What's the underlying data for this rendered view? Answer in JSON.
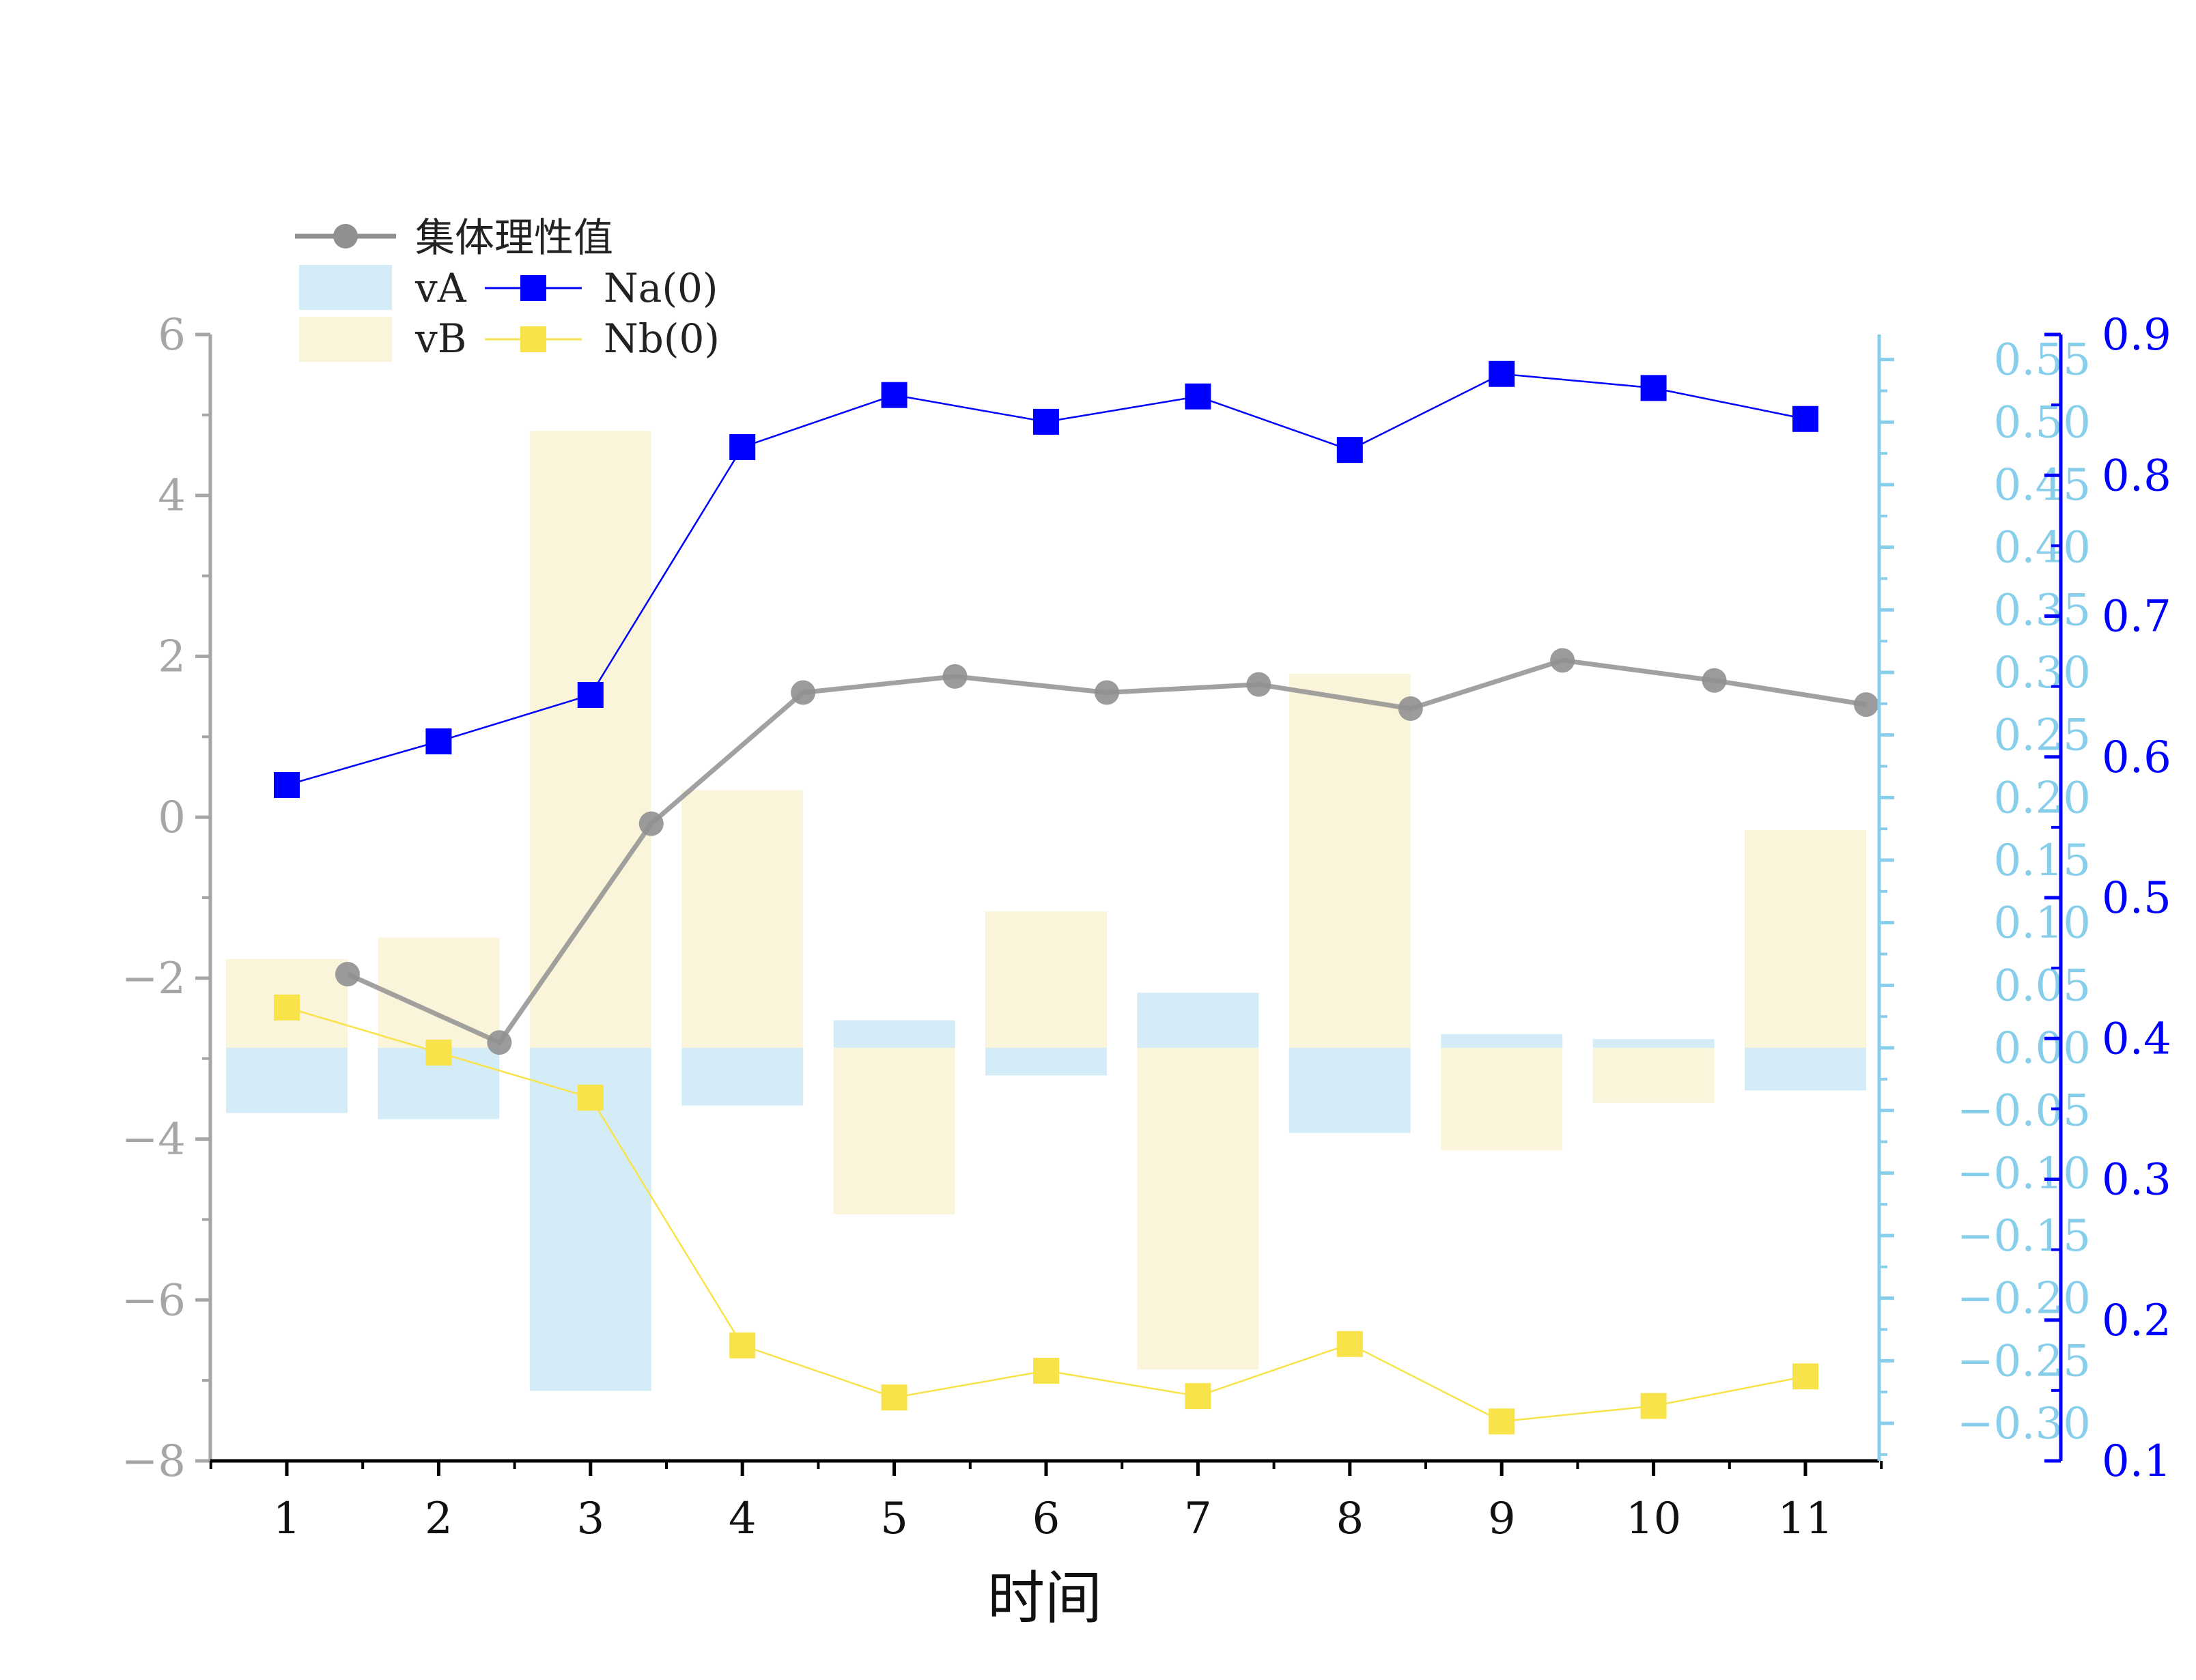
{
  "chart_data": {
    "type": "bar+line",
    "title": "",
    "xlabel": "时间",
    "categories": [
      "1",
      "2",
      "3",
      "4",
      "5",
      "6",
      "7",
      "8",
      "9",
      "10",
      "11"
    ],
    "axes": {
      "left": {
        "ylim": [
          -8,
          6
        ],
        "ticks": [
          "6",
          "4",
          "2",
          "0",
          "−2",
          "−4",
          "−6",
          "−8"
        ],
        "tick_values": [
          6,
          4,
          2,
          0,
          -2,
          -4,
          -6,
          -8
        ],
        "color": "#a6a6a6"
      },
      "right1": {
        "ylim": [
          -0.33,
          0.57
        ],
        "ticks": [
          "0.55",
          "0.50",
          "0.45",
          "0.40",
          "0.35",
          "0.30",
          "0.25",
          "0.20",
          "0.15",
          "0.10",
          "0.05",
          "0.00",
          "−0.05",
          "−0.10",
          "−0.15",
          "−0.20",
          "−0.25",
          "−0.30"
        ],
        "tick_values": [
          0.55,
          0.5,
          0.45,
          0.4,
          0.35,
          0.3,
          0.25,
          0.2,
          0.15,
          0.1,
          0.05,
          0.0,
          -0.05,
          -0.1,
          -0.15,
          -0.2,
          -0.25,
          -0.3
        ],
        "color": "#87ceeb"
      },
      "right2": {
        "ylim": [
          0.1,
          0.9
        ],
        "ticks": [
          "0.9",
          "0.8",
          "0.7",
          "0.6",
          "0.5",
          "0.4",
          "0.3",
          "0.2",
          "0.1"
        ],
        "tick_values": [
          0.9,
          0.8,
          0.7,
          0.6,
          0.5,
          0.4,
          0.3,
          0.2,
          0.1
        ],
        "color": "#0000ff"
      }
    },
    "series": [
      {
        "name": "集体理性值",
        "kind": "line",
        "marker": "circle",
        "axis": "left",
        "color": "#909090",
        "offset": 0.4,
        "values": [
          -1.95,
          -2.8,
          -0.08,
          1.55,
          1.75,
          1.55,
          1.65,
          1.35,
          1.95,
          1.7,
          1.4
        ]
      },
      {
        "name": "vA",
        "kind": "bar",
        "axis": "right1",
        "color": "#aedcf2",
        "values": [
          -0.052,
          -0.057,
          -0.274,
          -0.046,
          0.022,
          -0.022,
          0.044,
          -0.068,
          0.011,
          0.007,
          -0.034
        ]
      },
      {
        "name": "vB",
        "kind": "bar",
        "axis": "right1",
        "color": "#f8f0c6",
        "values": [
          0.071,
          0.088,
          0.493,
          0.206,
          -0.133,
          0.109,
          -0.257,
          0.299,
          -0.082,
          -0.044,
          0.174
        ]
      },
      {
        "name": "Na(0)",
        "kind": "line",
        "marker": "square",
        "axis": "right2",
        "color": "#0000ff",
        "values": [
          0.58,
          0.611,
          0.644,
          0.82,
          0.857,
          0.838,
          0.856,
          0.818,
          0.872,
          0.862,
          0.84
        ]
      },
      {
        "name": "Nb(0)",
        "kind": "line",
        "marker": "square",
        "axis": "right2",
        "color": "#f9e34a",
        "values": [
          0.422,
          0.39,
          0.358,
          0.182,
          0.145,
          0.164,
          0.146,
          0.183,
          0.128,
          0.139,
          0.16
        ]
      }
    ],
    "legend": {
      "placement": "top-left",
      "labels": [
        "集体理性值",
        "vA",
        "vB",
        "Na(0)",
        "Nb(0)"
      ]
    },
    "grid": false
  }
}
